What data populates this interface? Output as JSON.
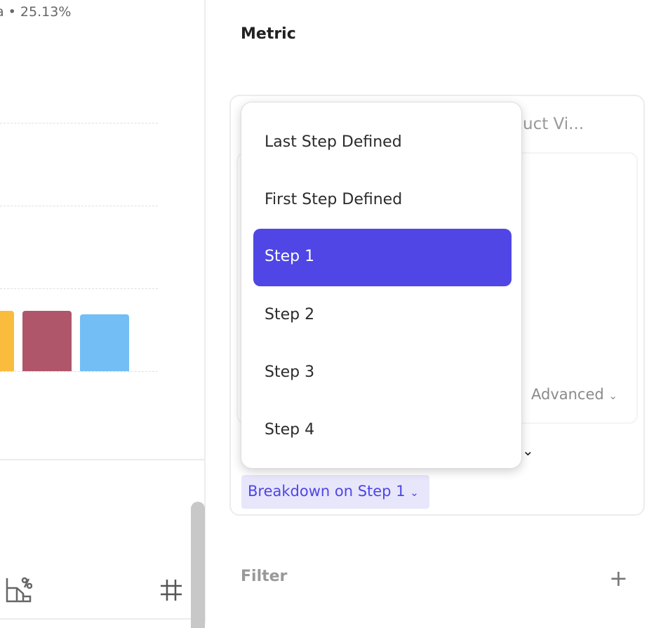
{
  "chart": {
    "subtitle": "a • 25.13%",
    "bar_colors": [
      "#F9BC3C",
      "#B0566A",
      "#72BEF5"
    ]
  },
  "toolbar": {
    "icons": [
      "percent-chart-icon",
      "hash-icon"
    ]
  },
  "metric": {
    "title": "Metric",
    "event_label": "uct Vi...",
    "advanced_label": "Advanced",
    "breakdown_label": "Breakdown on Step 1"
  },
  "dropdown": {
    "items": [
      "Last Step Defined",
      "First Step Defined",
      "Step 1",
      "Step 2",
      "Step 3",
      "Step 4"
    ],
    "selected": "Step 1",
    "accent": "#4F46E5"
  },
  "filter": {
    "title": "Filter",
    "add": "+"
  }
}
